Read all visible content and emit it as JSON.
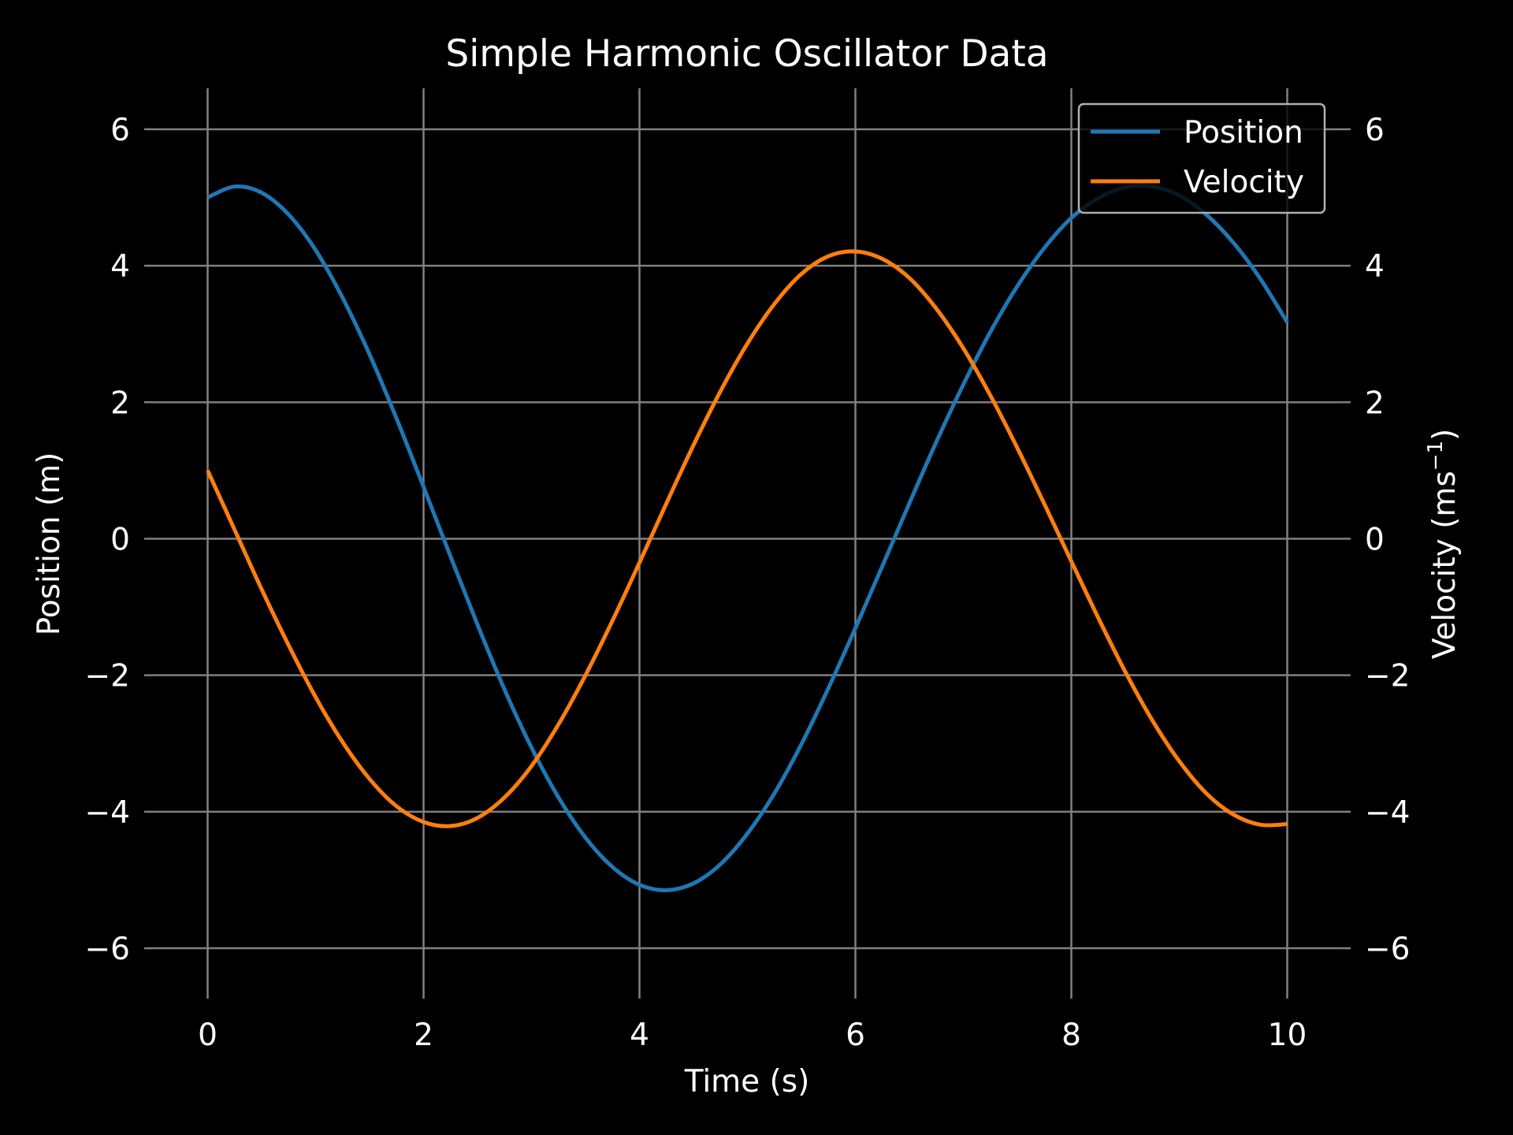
{
  "chart_data": {
    "type": "line",
    "title": "Simple Harmonic Oscillator Data",
    "xlabel": "Time (s)",
    "ylabel_left": "Position (m)",
    "ylabel_right_main": "Velocity (ms",
    "ylabel_right_sup": "−1",
    "ylabel_right_close": ")",
    "xlim": [
      -0.5,
      10.5
    ],
    "ylim": [
      -6.6,
      6.6
    ],
    "x_ticks": [
      0,
      2,
      4,
      6,
      8,
      10
    ],
    "x_tick_labels": [
      "0",
      "2",
      "4",
      "6",
      "8",
      "10"
    ],
    "y_ticks": [
      6,
      4,
      2,
      0,
      -2,
      -4,
      -6
    ],
    "y_tick_labels": [
      "6",
      "4",
      "2",
      "0",
      "−2",
      "−4",
      "−6"
    ],
    "grid": true,
    "legend": "top-right",
    "x": [
      0,
      0.25,
      0.5,
      0.75,
      1,
      1.25,
      1.5,
      1.75,
      2,
      2.25,
      2.5,
      2.75,
      3,
      3.25,
      3.5,
      3.75,
      4,
      4.25,
      4.5,
      4.75,
      5,
      5.25,
      5.5,
      5.75,
      6,
      6.25,
      6.5,
      6.75,
      7,
      7.25,
      7.5,
      7.75,
      8,
      8.25,
      8.5,
      8.75,
      9,
      9.25,
      9.5,
      9.75,
      10
    ],
    "series": [
      {
        "name": "Position",
        "color": "#1f77b4",
        "values": [
          5.0,
          5.16,
          5.07,
          4.75,
          4.23,
          3.53,
          2.7,
          1.76,
          0.76,
          -0.26,
          -1.26,
          -2.21,
          -3.06,
          -3.79,
          -4.38,
          -4.81,
          -5.07,
          -5.15,
          -5.05,
          -4.77,
          -4.32,
          -3.73,
          -3.01,
          -2.19,
          -1.31,
          -0.4,
          0.52,
          1.42,
          2.26,
          3.03,
          3.7,
          4.26,
          4.7,
          4.99,
          5.15,
          5.16,
          5.03,
          4.75,
          4.34,
          3.81,
          3.17
        ]
      },
      {
        "name": "Velocity",
        "color": "#ff7f0e",
        "values": [
          1.0,
          0.13,
          -0.74,
          -1.56,
          -2.32,
          -2.98,
          -3.52,
          -3.92,
          -4.15,
          -4.21,
          -4.09,
          -3.79,
          -3.33,
          -2.72,
          -2.0,
          -1.2,
          -0.35,
          0.52,
          1.37,
          2.16,
          2.86,
          3.44,
          3.88,
          4.14,
          4.21,
          4.1,
          3.82,
          3.37,
          2.79,
          2.1,
          1.33,
          0.51,
          -0.33,
          -1.16,
          -1.95,
          -2.66,
          -3.26,
          -3.73,
          -4.04,
          -4.19,
          -4.18
        ]
      }
    ],
    "colors": {
      "background": "#000000",
      "text": "#ffffff",
      "grid": "#808080",
      "legend_border": "#b0b0b0"
    }
  }
}
